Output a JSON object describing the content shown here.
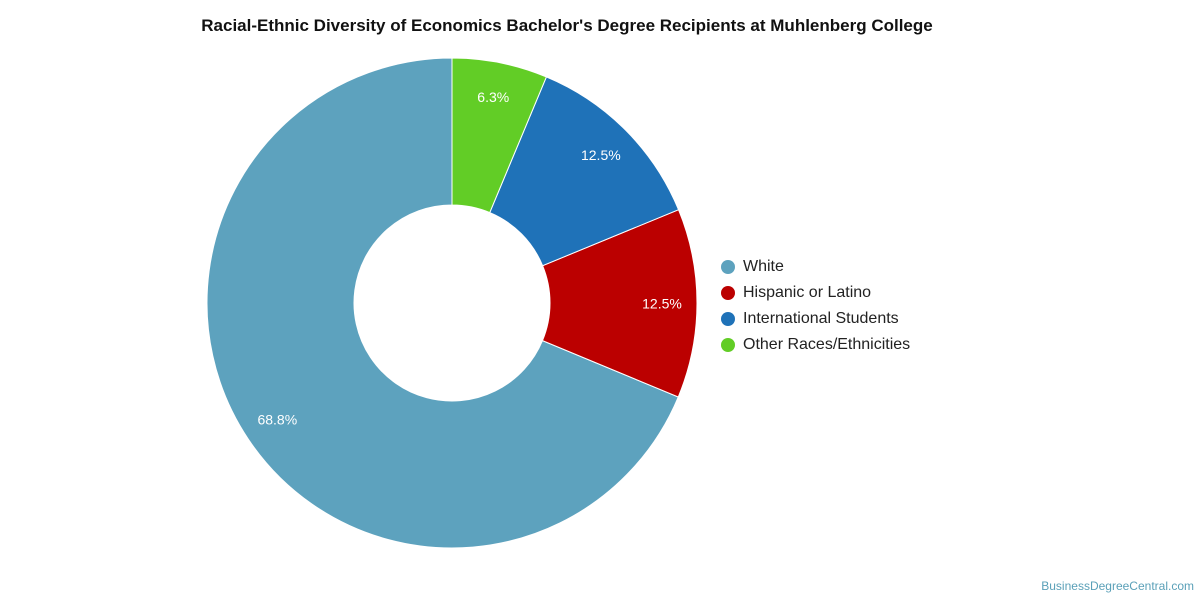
{
  "chart_data": {
    "type": "pie",
    "title": "Racial-Ethnic Diversity of Economics Bachelor's Degree Recipients at Muhlenberg College",
    "donut": true,
    "legend_position": "right",
    "slices": [
      {
        "name": "White",
        "value": 68.8,
        "label": "68.8%",
        "color": "#5da2be"
      },
      {
        "name": "Hispanic or Latino",
        "value": 12.5,
        "label": "12.5%",
        "color": "#bb0000"
      },
      {
        "name": "International Students",
        "value": 12.5,
        "label": "12.5%",
        "color": "#1f72b8"
      },
      {
        "name": "Other Races/Ethnicities",
        "value": 6.3,
        "label": "6.3%",
        "color": "#62cd26"
      }
    ]
  },
  "credit": "BusinessDegreeCentral.com"
}
